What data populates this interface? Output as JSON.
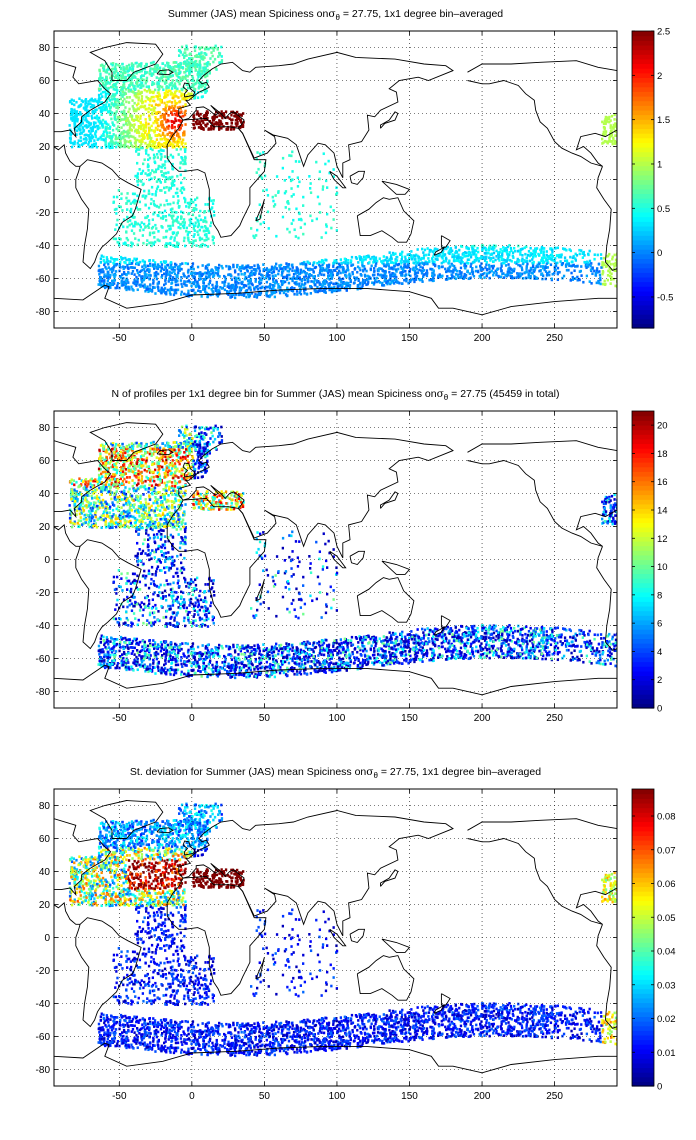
{
  "chart_data": [
    {
      "type": "heatmap",
      "title": "Summer (JAS) mean Spiciness on",
      "title_sigma": "σ",
      "title_sub": "θ",
      "title_tail": " = 27.75, 1x1 degree bin–averaged",
      "xlim": [
        -95,
        293
      ],
      "ylim": [
        -90,
        90
      ],
      "xticks": [
        -50,
        0,
        50,
        100,
        150,
        200,
        250
      ],
      "yticks": [
        -80,
        -60,
        -40,
        -20,
        0,
        20,
        40,
        60,
        80
      ],
      "grid": true,
      "colormap": "jet",
      "colorbar": {
        "min": -0.85,
        "max": 2.5,
        "ticks": [
          -0.5,
          0,
          0.5,
          1,
          1.5,
          2,
          2.5
        ]
      },
      "tick_labels_x": [
        "-50",
        "0",
        "50",
        "100",
        "150",
        "200",
        "250"
      ],
      "tick_labels_y": [
        "-80",
        "-60",
        "-40",
        "-20",
        "0",
        "20",
        "40",
        "60",
        "80"
      ],
      "colorbar_labels": [
        "-0.5",
        "0",
        "0.5",
        "1",
        "1.5",
        "2",
        "2.5"
      ]
    },
    {
      "type": "heatmap",
      "title": "N of profiles per 1x1 degree bin for Summer (JAS) mean Spiciness on",
      "title_sigma": "σ",
      "title_sub": "θ",
      "title_tail": " = 27.75 (45459 in total)",
      "xlim": [
        -95,
        293
      ],
      "ylim": [
        -90,
        90
      ],
      "xticks": [
        -50,
        0,
        50,
        100,
        150,
        200,
        250
      ],
      "yticks": [
        -80,
        -60,
        -40,
        -20,
        0,
        20,
        40,
        60,
        80
      ],
      "grid": true,
      "colormap": "jet",
      "colorbar": {
        "min": 0,
        "max": 21,
        "ticks": [
          0,
          2,
          4,
          6,
          8,
          10,
          12,
          14,
          16,
          18,
          20
        ]
      },
      "tick_labels_x": [
        "-50",
        "0",
        "50",
        "100",
        "150",
        "200",
        "250"
      ],
      "tick_labels_y": [
        "-80",
        "-60",
        "-40",
        "-20",
        "0",
        "20",
        "40",
        "60",
        "80"
      ],
      "colorbar_labels": [
        "0",
        "2",
        "4",
        "6",
        "8",
        "10",
        "12",
        "14",
        "16",
        "18",
        "20"
      ]
    },
    {
      "type": "heatmap",
      "title": "St. deviation for Summer (JAS) mean Spiciness on",
      "title_sigma": "σ",
      "title_sub": "θ",
      "title_tail": " = 27.75, 1x1 degree bin–averaged",
      "xlim": [
        -95,
        293
      ],
      "ylim": [
        -90,
        90
      ],
      "xticks": [
        -50,
        0,
        50,
        100,
        150,
        200,
        250
      ],
      "yticks": [
        -80,
        -60,
        -40,
        -20,
        0,
        20,
        40,
        60,
        80
      ],
      "grid": true,
      "colormap": "jet",
      "colorbar": {
        "min": 0,
        "max": 0.088,
        "ticks": [
          0,
          0.01,
          0.02,
          0.03,
          0.04,
          0.05,
          0.06,
          0.07,
          0.08
        ]
      },
      "tick_labels_x": [
        "-50",
        "0",
        "50",
        "100",
        "150",
        "200",
        "250"
      ],
      "tick_labels_y": [
        "-80",
        "-60",
        "-40",
        "-20",
        "0",
        "20",
        "40",
        "60",
        "80"
      ],
      "colorbar_labels": [
        "0",
        "0.01",
        "0.02",
        "0.03",
        "0.04",
        "0.05",
        "0.06",
        "0.07",
        "0.08"
      ]
    }
  ]
}
